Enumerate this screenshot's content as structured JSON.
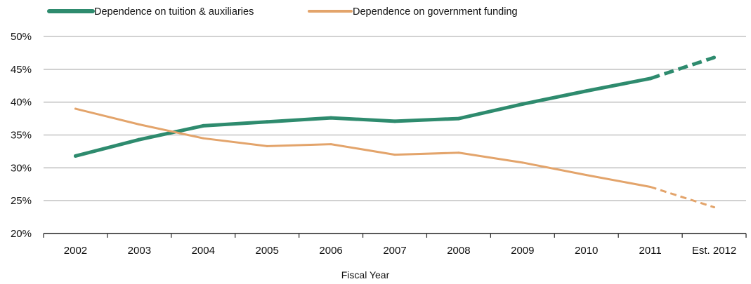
{
  "chart_data": {
    "type": "line",
    "xlabel": "Fiscal Year",
    "ylabel": "",
    "categories": [
      "2002",
      "2003",
      "2004",
      "2005",
      "2006",
      "2007",
      "2008",
      "2009",
      "2010",
      "2011",
      "Est. 2012"
    ],
    "y_ticks": [
      "20%",
      "25%",
      "30%",
      "35%",
      "40%",
      "45%",
      "50%"
    ],
    "ylim": [
      20,
      50
    ],
    "grid": true,
    "legend_position": "top-left",
    "series": [
      {
        "name": "Dependence on tuition & auxiliaries",
        "values": [
          31.8,
          34.3,
          36.4,
          37.0,
          37.6,
          37.1,
          37.5,
          39.7,
          41.7,
          43.6,
          46.8
        ],
        "color": "#2e8b6e",
        "estimate_from_index": 9
      },
      {
        "name": "Dependence on government funding",
        "values": [
          39.0,
          36.6,
          34.5,
          33.3,
          33.6,
          32.0,
          32.3,
          30.8,
          28.9,
          27.1,
          24.0
        ],
        "color": "#e3a46b",
        "estimate_from_index": 9
      }
    ]
  }
}
